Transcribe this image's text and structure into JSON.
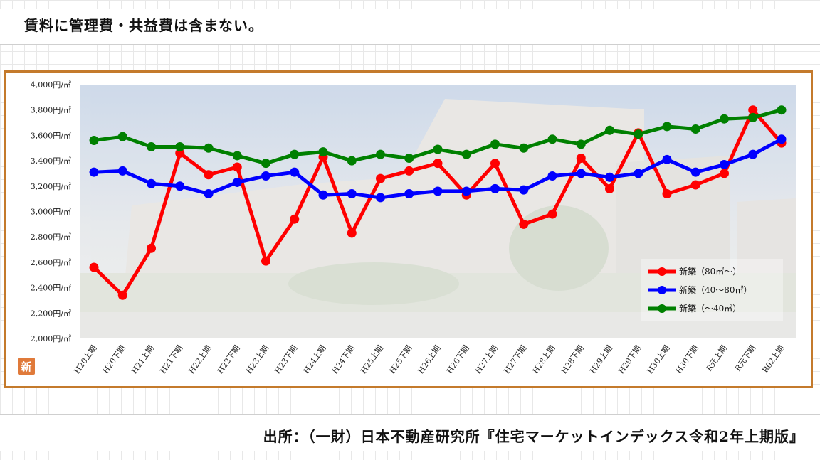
{
  "note": "賃料に管理費・共益費は含まない。",
  "source": "出所：（一財）日本不動産研究所『住宅マーケットインデックス令和2年上期版』",
  "badge": "新",
  "colors": {
    "frame": "#c47a2c",
    "red": "#ff0000",
    "blue": "#0000ff",
    "green": "#008000"
  },
  "chart_data": {
    "type": "line",
    "title": "",
    "xlabel": "",
    "ylabel": "",
    "ylim": [
      2000,
      4000
    ],
    "yticks": [
      "4,000円/㎡",
      "3,800円/㎡",
      "3,600円/㎡",
      "3,400円/㎡",
      "3,200円/㎡",
      "3,000円/㎡",
      "2,800円/㎡",
      "2,600円/㎡",
      "2,400円/㎡",
      "2,200円/㎡",
      "2,000円/㎡"
    ],
    "categories": [
      "H20上期",
      "H20下期",
      "H21上期",
      "H21下期",
      "H22上期",
      "H22下期",
      "H23上期",
      "H23下期",
      "H24上期",
      "H24下期",
      "H25上期",
      "H25下期",
      "H26上期",
      "H26下期",
      "H27上期",
      "H27下期",
      "H28上期",
      "H28下期",
      "H29上期",
      "H29下期",
      "H30上期",
      "H30下期",
      "R元上期",
      "R元下期",
      "R02上期"
    ],
    "legend_position": "right",
    "series": [
      {
        "name": "新築（80㎡～）",
        "color": "#ff0000",
        "values": [
          2560,
          2340,
          2710,
          3460,
          3290,
          3350,
          2610,
          2940,
          3430,
          2830,
          3260,
          3320,
          3380,
          3130,
          3380,
          2900,
          2980,
          3420,
          3180,
          3620,
          3140,
          3210,
          3300,
          3800,
          3540
        ]
      },
      {
        "name": "新築（40～80㎡）",
        "color": "#0000ff",
        "values": [
          3310,
          3320,
          3220,
          3200,
          3140,
          3230,
          3280,
          3310,
          3130,
          3140,
          3110,
          3140,
          3160,
          3160,
          3180,
          3170,
          3280,
          3300,
          3270,
          3300,
          3410,
          3310,
          3370,
          3450,
          3570
        ]
      },
      {
        "name": "新築（～40㎡）",
        "color": "#008000",
        "values": [
          3560,
          3590,
          3510,
          3510,
          3500,
          3440,
          3380,
          3450,
          3470,
          3400,
          3450,
          3420,
          3490,
          3450,
          3530,
          3500,
          3570,
          3530,
          3640,
          3610,
          3670,
          3650,
          3730,
          3740,
          3800
        ]
      }
    ]
  }
}
